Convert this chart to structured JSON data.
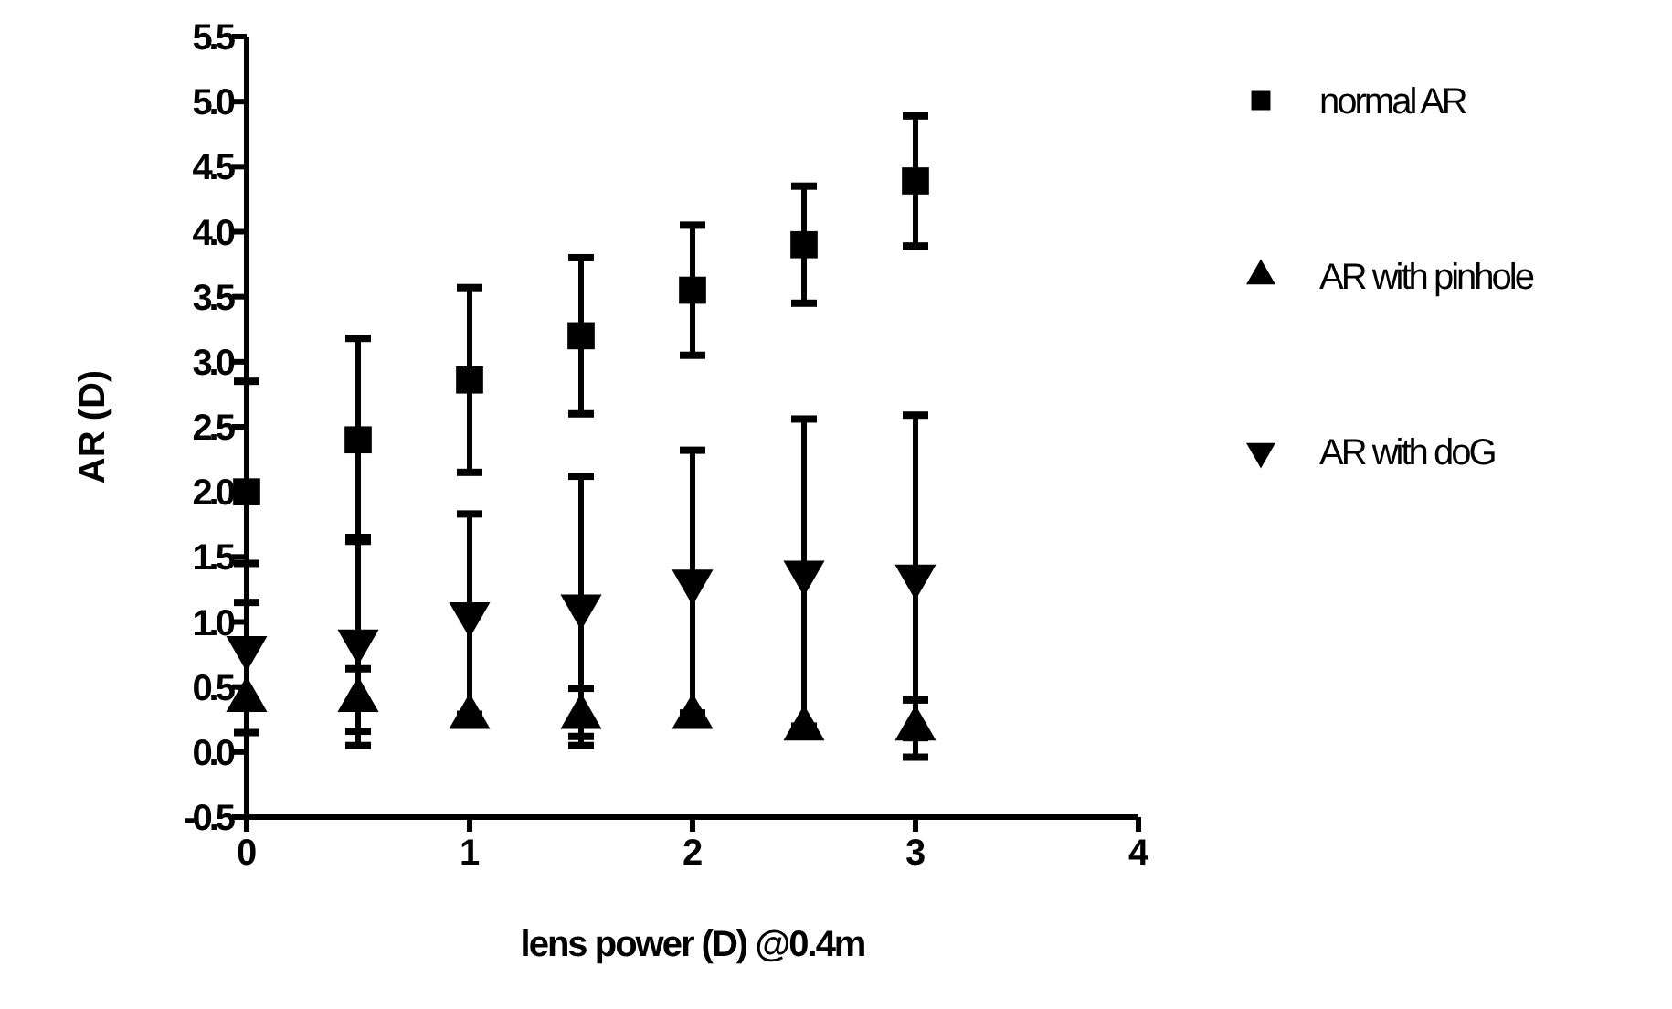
{
  "chart_data": {
    "type": "scatter",
    "xlabel": "lens power (D) @0.4m",
    "ylabel": "AR (D)",
    "x": [
      0,
      0.5,
      1,
      1.5,
      2,
      2.5,
      3
    ],
    "xlim": [
      0,
      4
    ],
    "xticks": [
      0,
      1,
      2,
      3,
      4
    ],
    "ylim": [
      -0.5,
      5.5
    ],
    "yticks": [
      -0.5,
      {
        "value": 0,
        "label": "0.0"
      },
      0.5,
      {
        "value": 1,
        "label": "1.0"
      },
      1.5,
      {
        "value": 2,
        "label": "2.0"
      },
      2.5,
      {
        "value": 3,
        "label": "3.0"
      },
      3.5,
      {
        "value": 4,
        "label": "4.0"
      },
      4.5,
      {
        "value": 5,
        "label": "5.0"
      },
      5.5
    ],
    "grid": false,
    "legend": "top right",
    "series": [
      {
        "name": "normal AR",
        "color": "#000000",
        "marker": "square",
        "values": [
          2.0,
          2.4,
          2.86,
          3.2,
          3.55,
          3.9,
          4.39
        ],
        "errors": [
          0.85,
          0.78,
          0.71,
          0.6,
          0.5,
          0.45,
          0.5
        ]
      },
      {
        "name": "AR with pinhole",
        "color": "#000000",
        "marker": "triangle",
        "values": [
          0.4,
          0.4,
          0.27,
          0.27,
          0.27,
          0.18,
          0.18
        ],
        "errors": [
          null,
          0.24,
          null,
          0.22,
          null,
          null,
          0.22
        ]
      },
      {
        "name": "AR with doG",
        "color": "#000000",
        "marker": "triangle-down",
        "values": [
          0.8,
          0.85,
          1.06,
          1.12,
          1.31,
          1.38,
          1.35
        ],
        "errors": [
          0.65,
          0.8,
          0.77,
          1.0,
          1.01,
          1.18,
          1.24
        ]
      }
    ]
  }
}
